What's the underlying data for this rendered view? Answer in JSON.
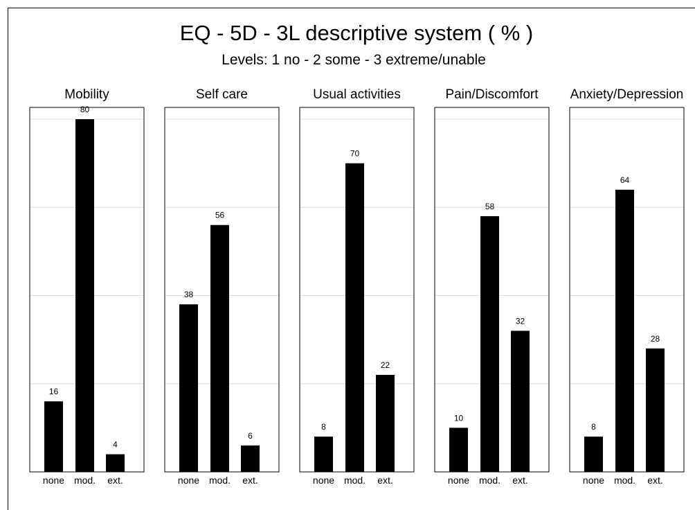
{
  "chart_data": {
    "type": "bar",
    "title": "EQ - 5D - 3L descriptive system ( % )",
    "subtitle": "Levels: 1 no - 2 some - 3 extreme/unable",
    "categories": [
      "none",
      "mod.",
      "ext."
    ],
    "ylim": [
      0,
      80
    ],
    "grid": true,
    "panels": [
      {
        "name": "Mobility",
        "values": [
          16,
          80,
          4
        ]
      },
      {
        "name": "Self care",
        "values": [
          38,
          56,
          6
        ]
      },
      {
        "name": "Usual activities",
        "values": [
          8,
          70,
          22
        ]
      },
      {
        "name": "Pain/Discomfort",
        "values": [
          10,
          58,
          32
        ]
      },
      {
        "name": "Anxiety/Depression",
        "values": [
          8,
          64,
          28
        ]
      }
    ],
    "colors": {
      "bar": "#000000",
      "grid": "#dcdcdc",
      "frame": "#000000"
    }
  }
}
